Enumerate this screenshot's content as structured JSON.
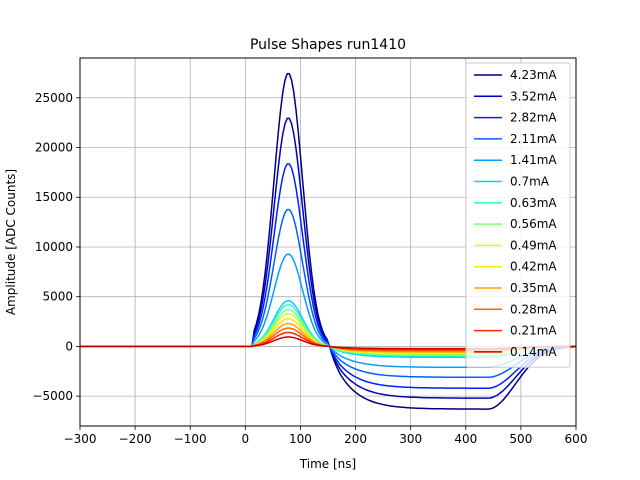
{
  "chart_data": {
    "type": "line",
    "title": "Pulse Shapes run1410",
    "xlabel": "Time [ns]",
    "ylabel": "Amplitude [ADC Counts]",
    "xlim": [
      -300,
      600
    ],
    "ylim": [
      -8000,
      29000
    ],
    "xticks": [
      -300,
      -200,
      -100,
      0,
      100,
      200,
      300,
      400,
      500,
      600
    ],
    "xtick_labels": [
      "−300",
      "−200",
      "−100",
      "0",
      "100",
      "200",
      "300",
      "400",
      "500",
      "600"
    ],
    "yticks": [
      -5000,
      0,
      5000,
      10000,
      15000,
      20000,
      25000
    ],
    "ytick_labels": [
      "−5000",
      "0",
      "5000",
      "10000",
      "15000",
      "20000",
      "25000"
    ],
    "grid": true,
    "legend_position": "top-right",
    "series": [
      {
        "name": "4.23mA",
        "color": "#00007f",
        "peak": 27500,
        "undershoot": -6300
      },
      {
        "name": "3.52mA",
        "color": "#0000c4",
        "peak": 23000,
        "undershoot": -5200
      },
      {
        "name": "2.82mA",
        "color": "#0020ff",
        "peak": 18400,
        "undershoot": -4200
      },
      {
        "name": "2.11mA",
        "color": "#0060ff",
        "peak": 13800,
        "undershoot": -3100
      },
      {
        "name": "1.41mA",
        "color": "#00a0ff",
        "peak": 9300,
        "undershoot": -2100
      },
      {
        "name": "0.7mA",
        "color": "#00d4ff",
        "peak": 4600,
        "undershoot": -1100
      },
      {
        "name": "0.63mA",
        "color": "#29ffce",
        "peak": 4200,
        "undershoot": -950
      },
      {
        "name": "0.56mA",
        "color": "#7dff7a",
        "peak": 3700,
        "undershoot": -850
      },
      {
        "name": "0.49mA",
        "color": "#ceff29",
        "peak": 3300,
        "undershoot": -750
      },
      {
        "name": "0.42mA",
        "color": "#ffe500",
        "peak": 2800,
        "undershoot": -650
      },
      {
        "name": "0.35mA",
        "color": "#ffa700",
        "peak": 2300,
        "undershoot": -550
      },
      {
        "name": "0.28mA",
        "color": "#ff6800",
        "peak": 1850,
        "undershoot": -450
      },
      {
        "name": "0.21mA",
        "color": "#ff2900",
        "peak": 1400,
        "undershoot": -330
      },
      {
        "name": "0.14mA",
        "color": "#c40000",
        "peak": 950,
        "undershoot": -220
      }
    ]
  }
}
